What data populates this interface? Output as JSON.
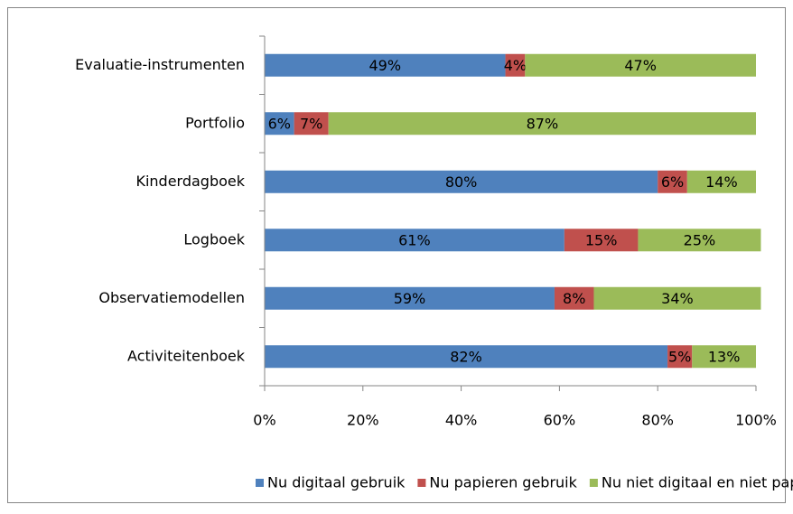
{
  "chart_data": {
    "type": "stacked_bar_horizontal",
    "categories": [
      "Evaluatie-instrumenten",
      "Portfolio",
      "Kinderdagboek",
      "Logboek",
      "Observatiemodellen",
      "Activiteitenboek"
    ],
    "series": [
      {
        "name": "Nu digitaal gebruik",
        "color": "#4f81bd",
        "values": [
          49,
          6,
          80,
          61,
          59,
          82
        ],
        "value_labels": [
          "49%",
          "6%",
          "80%",
          "61%",
          "59%",
          "82%"
        ]
      },
      {
        "name": "Nu papieren gebruik",
        "color": "#c0504d",
        "values": [
          4,
          7,
          6,
          15,
          8,
          5
        ],
        "value_labels": [
          "4%",
          "7%",
          "6%",
          "15%",
          "8%",
          "5%"
        ]
      },
      {
        "name": "Nu niet digitaal en niet papier",
        "color": "#9bbb59",
        "values": [
          47,
          87,
          14,
          25,
          34,
          13
        ],
        "value_labels": [
          "47%",
          "87%",
          "14%",
          "25%",
          "34%",
          "13%"
        ]
      }
    ],
    "xlim": [
      0,
      100
    ],
    "xticks": [
      {
        "value": 0,
        "label": "0%"
      },
      {
        "value": 20,
        "label": "20%"
      },
      {
        "value": 40,
        "label": "40%"
      },
      {
        "value": 60,
        "label": "60%"
      },
      {
        "value": 80,
        "label": "80%"
      },
      {
        "value": 100,
        "label": "100%"
      }
    ],
    "legend": "bottom"
  }
}
